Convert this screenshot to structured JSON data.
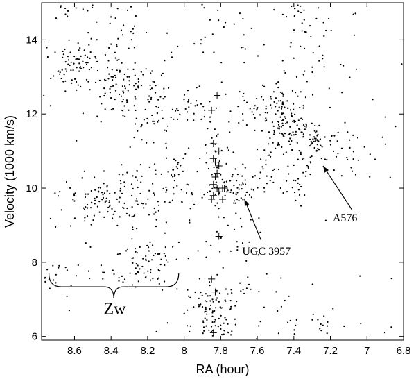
{
  "chart_data": {
    "type": "scatter",
    "title": "",
    "xlabel": "RA  (hour)",
    "ylabel": "Velocity (1000 km/s)",
    "xlim": [
      8.78,
      6.8
    ],
    "ylim": [
      5.9,
      15.0
    ],
    "x_ticks": [
      8.6,
      8.4,
      8.2,
      8.0,
      7.8,
      7.6,
      7.4,
      7.2,
      7.0,
      6.8
    ],
    "x_tick_labels": [
      "8.6",
      "8.4",
      "8.2",
      "8",
      "7.8",
      "7.6",
      "7.4",
      "7.2",
      "7",
      "6.8"
    ],
    "y_ticks": [
      6,
      8,
      10,
      12,
      14
    ],
    "y_tick_labels": [
      "6",
      "8",
      "10",
      "12",
      "14"
    ],
    "grid": false,
    "legend": "none",
    "series": [
      {
        "marker": "dot",
        "clusters": [
          {
            "center": [
              8.6,
              13.3
            ],
            "spread": [
              0.08,
              0.4
            ],
            "n": 70
          },
          {
            "center": [
              8.35,
              12.8
            ],
            "spread": [
              0.1,
              0.5
            ],
            "n": 80
          },
          {
            "center": [
              8.2,
              12.0
            ],
            "spread": [
              0.08,
              0.7
            ],
            "n": 60
          },
          {
            "center": [
              7.95,
              12.2
            ],
            "spread": [
              0.08,
              0.3
            ],
            "n": 30
          },
          {
            "center": [
              8.5,
              9.6
            ],
            "spread": [
              0.12,
              0.4
            ],
            "n": 60
          },
          {
            "center": [
              8.25,
              9.7
            ],
            "spread": [
              0.15,
              0.6
            ],
            "n": 90
          },
          {
            "center": [
              8.2,
              8.0
            ],
            "spread": [
              0.1,
              0.4
            ],
            "n": 60
          },
          {
            "center": [
              8.05,
              10.3
            ],
            "spread": [
              0.06,
              0.5
            ],
            "n": 30
          },
          {
            "center": [
              8.55,
              7.7
            ],
            "spread": [
              0.15,
              0.2
            ],
            "n": 25
          },
          {
            "center": [
              7.78,
              9.9
            ],
            "spread": [
              0.1,
              0.3
            ],
            "n": 50
          },
          {
            "center": [
              7.85,
              6.6
            ],
            "spread": [
              0.1,
              0.5
            ],
            "n": 90
          },
          {
            "center": [
              7.45,
              11.8
            ],
            "spread": [
              0.1,
              0.7
            ],
            "n": 130
          },
          {
            "center": [
              7.3,
              11.3
            ],
            "spread": [
              0.08,
              0.3
            ],
            "n": 50
          },
          {
            "center": [
              7.4,
              10.5
            ],
            "spread": [
              0.05,
              0.6
            ],
            "n": 30
          },
          {
            "center": [
              7.6,
              10.3
            ],
            "spread": [
              0.1,
              0.3
            ],
            "n": 30
          },
          {
            "center": [
              7.3,
              13.9
            ],
            "spread": [
              0.12,
              0.6
            ],
            "n": 30
          },
          {
            "center": [
              7.4,
              14.8
            ],
            "spread": [
              0.1,
              0.2
            ],
            "n": 15
          },
          {
            "center": [
              7.55,
              12.3
            ],
            "spread": [
              0.1,
              0.3
            ],
            "n": 30
          },
          {
            "center": [
              7.1,
              11.0
            ],
            "spread": [
              0.1,
              0.5
            ],
            "n": 25
          },
          {
            "center": [
              8.3,
              14.3
            ],
            "spread": [
              0.1,
              0.4
            ],
            "n": 20
          },
          {
            "center": [
              8.6,
              14.8
            ],
            "spread": [
              0.1,
              0.2
            ],
            "n": 12
          },
          {
            "center": [
              7.3,
              6.3
            ],
            "spread": [
              0.2,
              0.2
            ],
            "n": 20
          },
          {
            "center": [
              7.8,
              8.8
            ],
            "spread": [
              0.15,
              0.5
            ],
            "n": 20
          },
          {
            "center": [
              7.7,
              7.6
            ],
            "spread": [
              0.15,
              0.5
            ],
            "n": 20
          },
          {
            "center": [
              7.8,
              14.2
            ],
            "spread": [
              0.2,
              0.6
            ],
            "n": 20
          },
          {
            "center": [
              7.8,
              11.2
            ],
            "spread": [
              0.1,
              0.8
            ],
            "n": 30
          }
        ],
        "background_points": 120
      },
      {
        "marker": "plus",
        "points": [
          [
            7.82,
            12.5
          ],
          [
            7.85,
            12.1
          ],
          [
            7.84,
            11.2
          ],
          [
            7.81,
            11.0
          ],
          [
            7.84,
            10.8
          ],
          [
            7.83,
            10.7
          ],
          [
            7.81,
            10.6
          ],
          [
            7.82,
            10.4
          ],
          [
            7.83,
            10.3
          ],
          [
            7.84,
            10.1
          ],
          [
            7.82,
            10.0
          ],
          [
            7.79,
            10.0
          ],
          [
            7.78,
            10.0
          ],
          [
            7.81,
            9.9
          ],
          [
            7.84,
            9.8
          ],
          [
            7.79,
            9.7
          ],
          [
            7.85,
            9.7
          ],
          [
            7.81,
            8.7
          ],
          [
            7.85,
            7.55
          ],
          [
            7.83,
            7.2
          ],
          [
            7.84,
            6.1
          ]
        ]
      }
    ],
    "annotations": [
      {
        "text": "UGC 3957",
        "text_at": [
          7.55,
          8.2
        ],
        "arrow_from": [
          7.58,
          8.6
        ],
        "arrow_to": [
          7.67,
          9.7
        ]
      },
      {
        "text": "A576",
        "text_at": [
          7.12,
          9.1
        ],
        "arrow_from": [
          7.08,
          9.4
        ],
        "arrow_to": [
          7.24,
          10.6
        ]
      },
      {
        "text": "Zw",
        "text_at": [
          8.38,
          6.6
        ],
        "brace_from": 8.74,
        "brace_to": 8.03,
        "brace_y": 7.7
      }
    ]
  }
}
